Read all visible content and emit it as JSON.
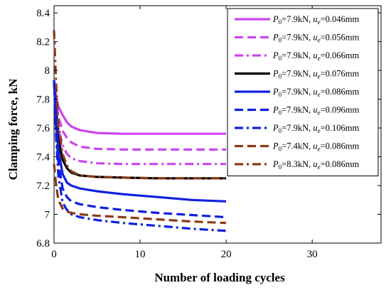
{
  "chart_data": {
    "type": "line",
    "title": "",
    "xlabel": "Number of loading cycles",
    "ylabel": "Clamping force, kN",
    "xlim": [
      0,
      38
    ],
    "ylim": [
      6.8,
      8.45
    ],
    "xticks": [
      "0",
      "10",
      "20",
      "30"
    ],
    "yticks": [
      "6.8",
      "7",
      "7.2",
      "7.4",
      "7.6",
      "7.8",
      "8",
      "8.2",
      "8.4"
    ],
    "grid": false,
    "legend_position": "top-right",
    "series": [
      {
        "name_parts": [
          "P",
          "0",
          "=7.9kN, ",
          "u",
          "e",
          "=0.046mm"
        ],
        "color": "#cc44ee",
        "dash": "solid",
        "width": 3.2,
        "x": [
          0,
          0.25,
          0.5,
          1,
          1.5,
          2,
          3,
          5,
          8,
          12,
          16,
          20
        ],
        "y": [
          7.93,
          7.82,
          7.75,
          7.69,
          7.64,
          7.61,
          7.585,
          7.565,
          7.56,
          7.56,
          7.56,
          7.56
        ]
      },
      {
        "name_parts": [
          "P",
          "0",
          "=7.9kN, ",
          "u",
          "e",
          "=0.056mm"
        ],
        "color": "#cc44ee",
        "dash": "dash",
        "width": 3.2,
        "x": [
          0,
          0.25,
          0.5,
          1,
          1.5,
          2,
          3,
          5,
          8,
          12,
          16,
          20
        ],
        "y": [
          7.93,
          7.78,
          7.68,
          7.58,
          7.53,
          7.5,
          7.47,
          7.455,
          7.45,
          7.45,
          7.45,
          7.45
        ]
      },
      {
        "name_parts": [
          "P",
          "0",
          "=7.9kN, ",
          "u",
          "e",
          "=0.066mm"
        ],
        "color": "#cc44ee",
        "dash": "dashdot",
        "width": 3.2,
        "x": [
          0,
          0.25,
          0.5,
          1,
          1.5,
          2,
          3,
          5,
          8,
          12,
          16,
          20
        ],
        "y": [
          7.93,
          7.74,
          7.6,
          7.48,
          7.42,
          7.39,
          7.37,
          7.355,
          7.35,
          7.35,
          7.35,
          7.35
        ]
      },
      {
        "name_parts": [
          "P",
          "0",
          "=7.9kN, ",
          "u",
          "e",
          "=0.076mm"
        ],
        "color": "#000000",
        "dash": "solid",
        "width": 3.2,
        "x": [
          0,
          0.25,
          0.5,
          1,
          1.5,
          2,
          3,
          5,
          8,
          12,
          16,
          20
        ],
        "y": [
          7.93,
          7.7,
          7.53,
          7.38,
          7.32,
          7.29,
          7.27,
          7.26,
          7.255,
          7.25,
          7.25,
          7.25
        ]
      },
      {
        "name_parts": [
          "P",
          "0",
          "=7.9kN, ",
          "u",
          "e",
          "=0.086mm"
        ],
        "color": "#1020e0",
        "dash": "solid",
        "width": 3.2,
        "x": [
          0,
          0.25,
          0.5,
          1,
          1.5,
          2,
          3,
          5,
          8,
          12,
          16,
          20
        ],
        "y": [
          7.93,
          7.64,
          7.45,
          7.28,
          7.22,
          7.2,
          7.18,
          7.16,
          7.14,
          7.12,
          7.1,
          7.09
        ]
      },
      {
        "name_parts": [
          "P",
          "0",
          "=7.9kN, ",
          "u",
          "e",
          "=0.096mm"
        ],
        "color": "#1020e0",
        "dash": "dash",
        "width": 3.2,
        "x": [
          0,
          0.25,
          0.5,
          1,
          1.5,
          2,
          3,
          5,
          8,
          12,
          16,
          20
        ],
        "y": [
          7.93,
          7.58,
          7.36,
          7.18,
          7.12,
          7.09,
          7.07,
          7.05,
          7.03,
          7.01,
          6.995,
          6.98
        ]
      },
      {
        "name_parts": [
          "P",
          "0",
          "=7.9kN, ",
          "u",
          "e",
          "=0.106mm"
        ],
        "color": "#1020e0",
        "dash": "dashdot",
        "width": 3.2,
        "x": [
          0,
          0.25,
          0.5,
          1,
          1.5,
          2,
          3,
          5,
          8,
          12,
          16,
          20
        ],
        "y": [
          7.93,
          7.52,
          7.27,
          7.08,
          7.03,
          7.0,
          6.98,
          6.96,
          6.94,
          6.92,
          6.9,
          6.885
        ]
      },
      {
        "name_parts": [
          "P",
          "0",
          "=7.4kN, ",
          "u",
          "e",
          "=0.086mm"
        ],
        "color": "#8b3a18",
        "dash": "dash",
        "width": 3.2,
        "x": [
          0,
          0.25,
          0.5,
          1,
          1.5,
          2,
          3,
          5,
          8,
          12,
          16,
          20
        ],
        "y": [
          7.35,
          7.2,
          7.1,
          7.04,
          7.02,
          7.01,
          7.0,
          6.99,
          6.98,
          6.965,
          6.95,
          6.94
        ]
      },
      {
        "name_parts": [
          "P",
          "0",
          "=8.3kN, ",
          "u",
          "e",
          "=0.086mm"
        ],
        "color": "#8b3a18",
        "dash": "dashdot",
        "width": 3.2,
        "x": [
          0,
          0.25,
          0.5,
          1,
          1.5,
          2,
          3,
          5,
          8,
          12,
          16,
          20
        ],
        "y": [
          8.28,
          7.9,
          7.62,
          7.42,
          7.34,
          7.3,
          7.27,
          7.26,
          7.255,
          7.25,
          7.25,
          7.25
        ]
      }
    ]
  }
}
